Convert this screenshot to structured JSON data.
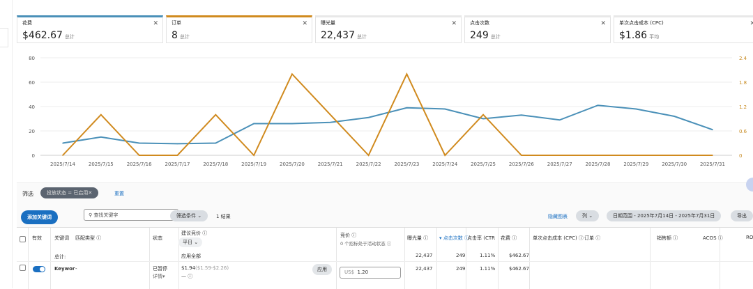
{
  "metrics": [
    {
      "label": "花费",
      "value": "$462.67",
      "suffix": "总计",
      "color": "#4a90b8"
    },
    {
      "label": "订单",
      "value": "8",
      "suffix": "总计",
      "color": "#d08a1e"
    },
    {
      "label": "曝光量",
      "value": "22,437",
      "suffix": "总计"
    },
    {
      "label": "点击次数",
      "value": "249",
      "suffix": "总计"
    },
    {
      "label": "单次点击成本 (CPC)",
      "value": "$1.86",
      "suffix": "平均"
    }
  ],
  "chart_data": {
    "type": "line",
    "categories": [
      "2025/7/14",
      "2025/7/15",
      "2025/7/16",
      "2025/7/17",
      "2025/7/18",
      "2025/7/19",
      "2025/7/20",
      "2025/7/21",
      "2025/7/22",
      "2025/7/23",
      "2025/7/24",
      "2025/7/25",
      "2025/7/26",
      "2025/7/27",
      "2025/7/28",
      "2025/7/29",
      "2025/7/30",
      "2025/7/31"
    ],
    "series": [
      {
        "metric": "花费",
        "axis": "left",
        "color": "#4a90b8",
        "values": [
          10,
          15,
          10,
          9.5,
          10,
          26,
          26,
          27,
          31,
          39,
          38,
          30,
          33,
          29,
          41,
          38,
          32,
          21
        ]
      },
      {
        "metric": "订单",
        "axis": "right",
        "color": "#d08a1e",
        "values": [
          0,
          1,
          0,
          0,
          1,
          0,
          2,
          1,
          0,
          2,
          0,
          1,
          0,
          0,
          0,
          0,
          0,
          0
        ]
      }
    ],
    "left_ticks": [
      "0",
      "20",
      "40",
      "60",
      "80"
    ],
    "ylim": [
      0,
      80
    ],
    "right_ticks": [
      "0",
      "0.6",
      "1.2",
      "1.8",
      "2.4"
    ],
    "y2lim": [
      0,
      2.4
    ],
    "grid": true
  },
  "filter": {
    "label": "筛选",
    "chip": "投放状态 = 已启用✕",
    "reset": "重置"
  },
  "toolbar": {
    "add": "添加关键词",
    "search_placeholder": "查找关键字",
    "conditions": "筛选条件 ⌄",
    "results": "1 结果",
    "hide_chart": "隐藏图表",
    "columns": "列 ⌄",
    "date_range": "日期范围 - 2025年7月14日 - 2025年7月31日",
    "export": "导出"
  },
  "table": {
    "headers": {
      "active": "有效",
      "keyword": "关键词",
      "match": "匹配类型 ⓘ",
      "status": "状态",
      "suggested": "建议竞价 ⓘ",
      "weekday": "平日 ⌄",
      "apply_all": "应用全部",
      "bid": "竞价 ⓘ",
      "bid_sub": "0 个招标处于活动状态 ⓘ",
      "impr": "曝光量 ⓘ",
      "clicks": "▾ 点击次数 ⓘ",
      "ctr": "点击率 (CTR",
      "spend": "花费 ⓘ",
      "cpc": "单次点击成本 (CPC) ⓘ",
      "orders": "订单 ⓘ",
      "sales": "销售额 ⓘ",
      "acos": "ACOS ⓘ",
      "roas": "RO"
    },
    "total": {
      "label": "总计:",
      "impr": "22,437",
      "clicks": "249",
      "ctr": "1.11%",
      "spend": "$462.67"
    },
    "rows": [
      {
        "keyword": "Keywor",
        "match": "-",
        "status": "已暂停",
        "detail": "详情▾",
        "suggested": "$1.94",
        "range": "($1.59-$2.26)",
        "dash": "— ⓘ",
        "apply": "应用",
        "currency": "US$",
        "bid": "1.20",
        "impr": "22,437",
        "clicks": "249",
        "ctr": "1.11%",
        "spend": "$462.67"
      }
    ]
  }
}
